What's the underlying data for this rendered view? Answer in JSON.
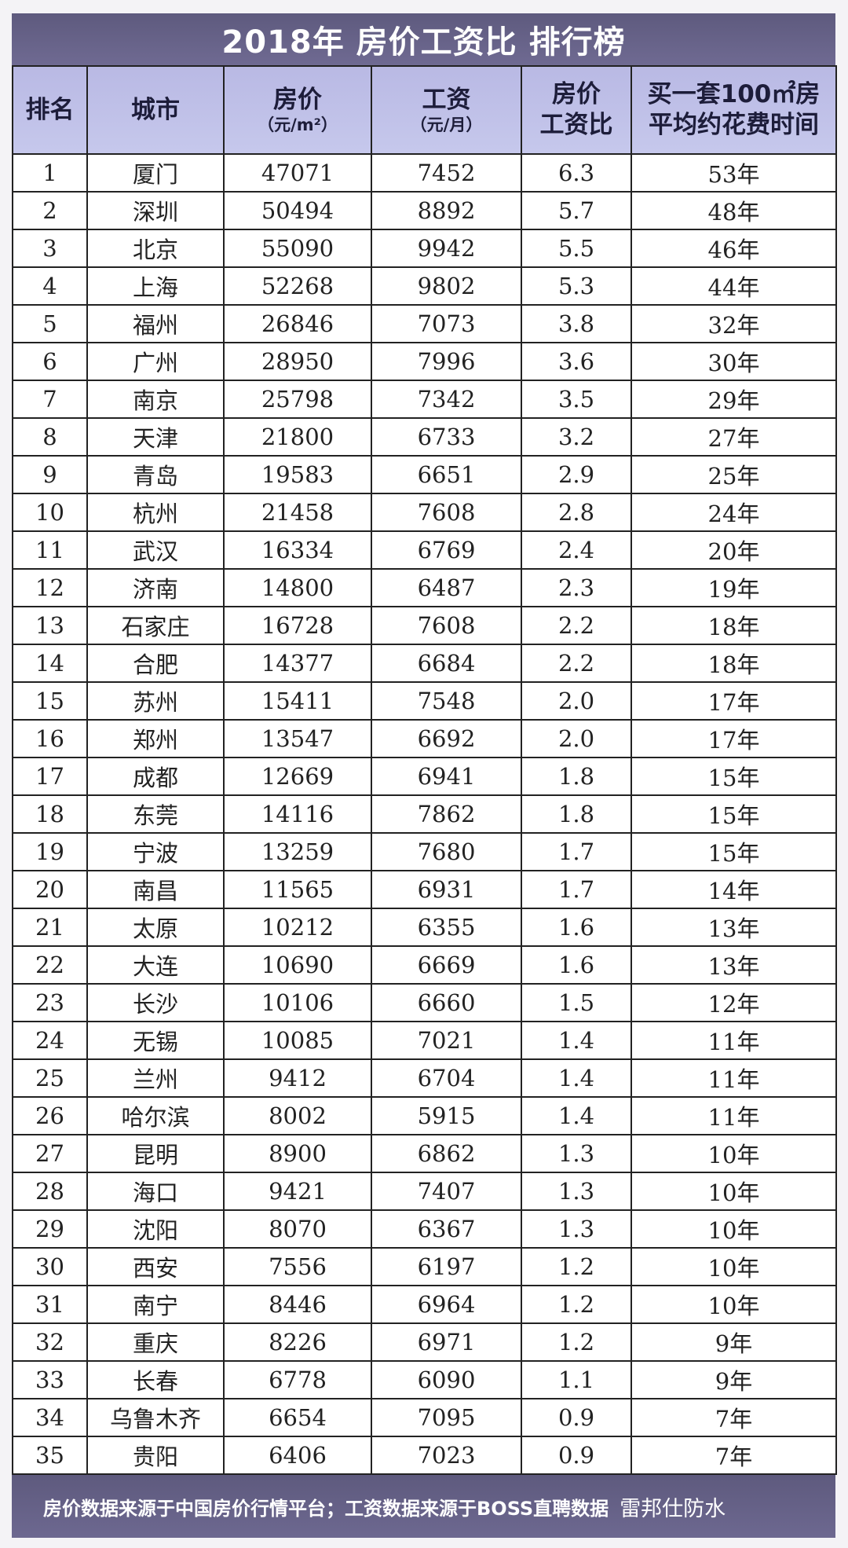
{
  "title": "2018年 房价工资比 排行榜",
  "headers": [
    {
      "main": "排名",
      "sub": ""
    },
    {
      "main": "城市",
      "sub": ""
    },
    {
      "main": "房价",
      "sub": "（元/m²）"
    },
    {
      "main": "工资",
      "sub": "（元/月）"
    },
    {
      "main": "房价",
      "sub": "工资比"
    },
    {
      "main": "买一套100㎡房",
      "sub": "平均约花费时间"
    }
  ],
  "rows": [
    [
      "1",
      "厦门",
      "47071",
      "7452",
      "6.3",
      "53年"
    ],
    [
      "2",
      "深圳",
      "50494",
      "8892",
      "5.7",
      "48年"
    ],
    [
      "3",
      "北京",
      "55090",
      "9942",
      "5.5",
      "46年"
    ],
    [
      "4",
      "上海",
      "52268",
      "9802",
      "5.3",
      "44年"
    ],
    [
      "5",
      "福州",
      "26846",
      "7073",
      "3.8",
      "32年"
    ],
    [
      "6",
      "广州",
      "28950",
      "7996",
      "3.6",
      "30年"
    ],
    [
      "7",
      "南京",
      "25798",
      "7342",
      "3.5",
      "29年"
    ],
    [
      "8",
      "天津",
      "21800",
      "6733",
      "3.2",
      "27年"
    ],
    [
      "9",
      "青岛",
      "19583",
      "6651",
      "2.9",
      "25年"
    ],
    [
      "10",
      "杭州",
      "21458",
      "7608",
      "2.8",
      "24年"
    ],
    [
      "11",
      "武汉",
      "16334",
      "6769",
      "2.4",
      "20年"
    ],
    [
      "12",
      "济南",
      "14800",
      "6487",
      "2.3",
      "19年"
    ],
    [
      "13",
      "石家庄",
      "16728",
      "7608",
      "2.2",
      "18年"
    ],
    [
      "14",
      "合肥",
      "14377",
      "6684",
      "2.2",
      "18年"
    ],
    [
      "15",
      "苏州",
      "15411",
      "7548",
      "2.0",
      "17年"
    ],
    [
      "16",
      "郑州",
      "13547",
      "6692",
      "2.0",
      "17年"
    ],
    [
      "17",
      "成都",
      "12669",
      "6941",
      "1.8",
      "15年"
    ],
    [
      "18",
      "东莞",
      "14116",
      "7862",
      "1.8",
      "15年"
    ],
    [
      "19",
      "宁波",
      "13259",
      "7680",
      "1.7",
      "15年"
    ],
    [
      "20",
      "南昌",
      "11565",
      "6931",
      "1.7",
      "14年"
    ],
    [
      "21",
      "太原",
      "10212",
      "6355",
      "1.6",
      "13年"
    ],
    [
      "22",
      "大连",
      "10690",
      "6669",
      "1.6",
      "13年"
    ],
    [
      "23",
      "长沙",
      "10106",
      "6660",
      "1.5",
      "12年"
    ],
    [
      "24",
      "无锡",
      "10085",
      "7021",
      "1.4",
      "11年"
    ],
    [
      "25",
      "兰州",
      "9412",
      "6704",
      "1.4",
      "11年"
    ],
    [
      "26",
      "哈尔滨",
      "8002",
      "5915",
      "1.4",
      "11年"
    ],
    [
      "27",
      "昆明",
      "8900",
      "6862",
      "1.3",
      "10年"
    ],
    [
      "28",
      "海口",
      "9421",
      "7407",
      "1.3",
      "10年"
    ],
    [
      "29",
      "沈阳",
      "8070",
      "6367",
      "1.3",
      "10年"
    ],
    [
      "30",
      "西安",
      "7556",
      "6197",
      "1.2",
      "10年"
    ],
    [
      "31",
      "南宁",
      "8446",
      "6964",
      "1.2",
      "10年"
    ],
    [
      "32",
      "重庆",
      "8226",
      "6971",
      "1.2",
      "9年"
    ],
    [
      "33",
      "长春",
      "6778",
      "6090",
      "1.1",
      "9年"
    ],
    [
      "34",
      "乌鲁木齐",
      "6654",
      "7095",
      "0.9",
      "7年"
    ],
    [
      "35",
      "贵阳",
      "6406",
      "7023",
      "0.9",
      "7年"
    ]
  ],
  "footer": "房价数据来源于中国房价行情平台；工资数据来源于BOSS直聘数据",
  "watermark": "雷邦仕防水"
}
